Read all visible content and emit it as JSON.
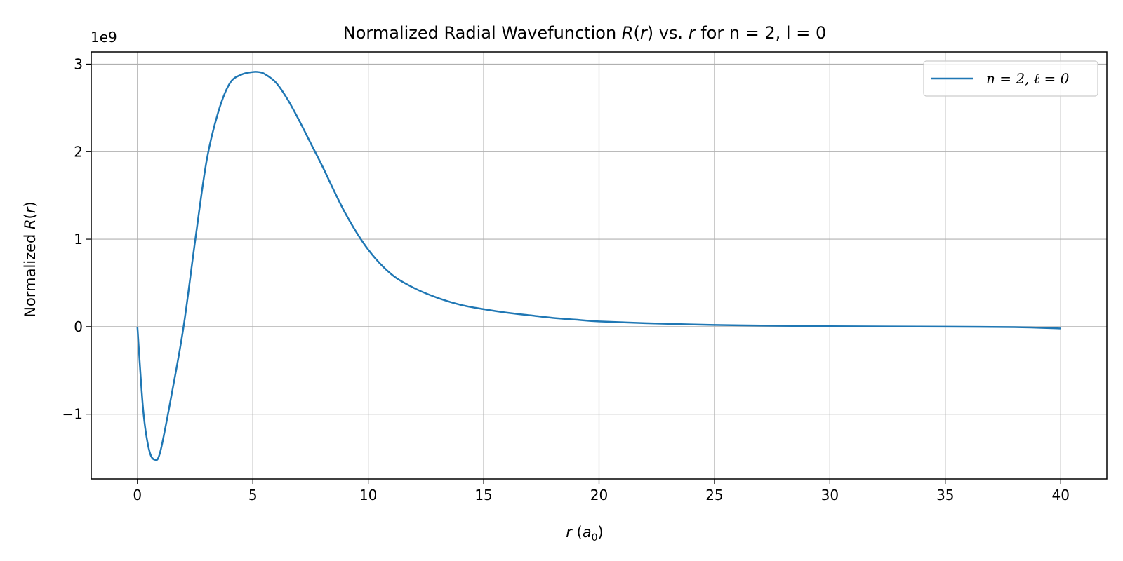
{
  "chart_data": {
    "type": "line",
    "title": {
      "pre": "Normalized Radial Wavefunction ",
      "R": "R",
      "paren_open": "(",
      "r1": "r",
      "paren_close": ")",
      "mid": " vs. ",
      "r2": "r",
      "post": " for n = 2, l = 0"
    },
    "xlabel": {
      "r": "r",
      "open": " (",
      "a": "a",
      "sub": "0",
      "close": ")"
    },
    "ylabel": {
      "pre": "Normalized ",
      "R": "R",
      "open": "(",
      "r": "r",
      "close": ")"
    },
    "y_offset_label": "1e9",
    "xlim": [
      -2,
      42
    ],
    "ylim": [
      -1.74,
      3.14
    ],
    "y_scale": 1000000000,
    "x_ticks": [
      0,
      5,
      10,
      15,
      20,
      25,
      30,
      35,
      40
    ],
    "y_ticks": [
      -1,
      0,
      1,
      2,
      3
    ],
    "x_tick_labels": [
      "0",
      "5",
      "10",
      "15",
      "20",
      "25",
      "30",
      "35",
      "40"
    ],
    "y_tick_labels": [
      "−1",
      "0",
      "1",
      "2",
      "3"
    ],
    "grid": true,
    "legend_position": "top-right",
    "series": [
      {
        "name": "n = 2, ℓ = 0",
        "color": "#1f77b4",
        "x": [
          0,
          0.25,
          0.5,
          0.75,
          1,
          1.5,
          2,
          2.5,
          3,
          3.5,
          4,
          4.5,
          5,
          5.25,
          5.5,
          6,
          6.5,
          7,
          7.5,
          8,
          9,
          10,
          11,
          12,
          13,
          14,
          15,
          16,
          17,
          18,
          19,
          20,
          22,
          25,
          28,
          30,
          35,
          38,
          40
        ],
        "y": [
          0,
          -0.95,
          -1.4,
          -1.52,
          -1.42,
          -0.75,
          0.0,
          0.98,
          1.9,
          2.45,
          2.78,
          2.88,
          2.91,
          2.91,
          2.89,
          2.79,
          2.6,
          2.36,
          2.1,
          1.84,
          1.3,
          0.88,
          0.6,
          0.44,
          0.33,
          0.25,
          0.2,
          0.16,
          0.13,
          0.1,
          0.08,
          0.06,
          0.04,
          0.02,
          0.01,
          0.005,
          0.0,
          -0.005,
          -0.02
        ]
      }
    ]
  }
}
